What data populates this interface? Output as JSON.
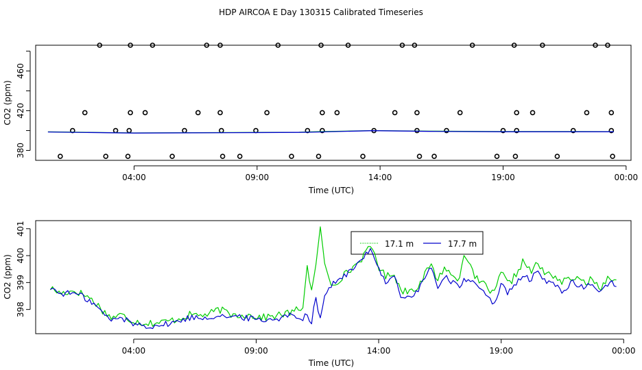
{
  "title": "HDP AIRCOA E  Day 130315  Calibrated Timeseries",
  "colors": {
    "green": "#00cc00",
    "blue": "#0000cc",
    "points": "#000000"
  },
  "chart_data": [
    {
      "type": "scatter",
      "xlabel": "Time (UTC)",
      "ylabel": "CO2 (ppm)",
      "xlim": [
        0.0,
        24.2
      ],
      "ylim": [
        370,
        486
      ],
      "x_ticks": [
        {
          "v": 4,
          "label": "04:00"
        },
        {
          "v": 9,
          "label": "09:00"
        },
        {
          "v": 14,
          "label": "14:00"
        },
        {
          "v": 19,
          "label": "19:00"
        },
        {
          "v": 24,
          "label": "00:00"
        }
      ],
      "y_ticks": [
        {
          "v": 380,
          "label": "380"
        },
        {
          "v": 420,
          "label": "420"
        },
        {
          "v": 460,
          "label": "460"
        }
      ],
      "grid": false,
      "points": [
        [
          1.0,
          374
        ],
        [
          2.6,
          486
        ],
        [
          3.85,
          486
        ],
        [
          4.75,
          486
        ],
        [
          6.95,
          486
        ],
        [
          7.5,
          486
        ],
        [
          9.85,
          486
        ],
        [
          11.6,
          486
        ],
        [
          12.7,
          486
        ],
        [
          14.9,
          486
        ],
        [
          15.4,
          486
        ],
        [
          17.75,
          486
        ],
        [
          19.45,
          486
        ],
        [
          20.6,
          486
        ],
        [
          22.75,
          486
        ],
        [
          23.25,
          486
        ],
        [
          1.5,
          400
        ],
        [
          3.25,
          400
        ],
        [
          3.8,
          400
        ],
        [
          6.05,
          400
        ],
        [
          7.55,
          400
        ],
        [
          8.95,
          400
        ],
        [
          11.05,
          400
        ],
        [
          11.65,
          400
        ],
        [
          13.75,
          400
        ],
        [
          15.5,
          400
        ],
        [
          16.7,
          400
        ],
        [
          19.0,
          400
        ],
        [
          19.55,
          400
        ],
        [
          21.85,
          400
        ],
        [
          23.4,
          400
        ],
        [
          2.0,
          418
        ],
        [
          3.85,
          418
        ],
        [
          4.45,
          418
        ],
        [
          6.6,
          418
        ],
        [
          7.5,
          418
        ],
        [
          9.4,
          418
        ],
        [
          11.65,
          418
        ],
        [
          12.25,
          418
        ],
        [
          14.6,
          418
        ],
        [
          15.5,
          418
        ],
        [
          17.25,
          418
        ],
        [
          19.55,
          418
        ],
        [
          20.2,
          418
        ],
        [
          22.4,
          418
        ],
        [
          23.4,
          418
        ],
        [
          2.85,
          374
        ],
        [
          3.75,
          374
        ],
        [
          5.55,
          374
        ],
        [
          7.6,
          374
        ],
        [
          8.3,
          374
        ],
        [
          10.4,
          374
        ],
        [
          11.5,
          374
        ],
        [
          13.3,
          374
        ],
        [
          15.6,
          374
        ],
        [
          16.2,
          374
        ],
        [
          18.75,
          374
        ],
        [
          19.5,
          374
        ],
        [
          21.2,
          374
        ],
        [
          23.45,
          374
        ]
      ],
      "series": [
        {
          "name": "17.1 m",
          "color": "#00cc00",
          "x": [
            0.5,
            4.0,
            8.0,
            10.7,
            11.5,
            13.7,
            16.0,
            19.0,
            22.0,
            23.5
          ],
          "y": [
            398.7,
            397.6,
            398.0,
            398.3,
            398.9,
            400.0,
            399.4,
            399.0,
            399.0,
            398.9
          ]
        },
        {
          "name": "17.7 m",
          "color": "#0000cc",
          "x": [
            0.5,
            4.0,
            8.0,
            10.7,
            11.5,
            13.7,
            16.0,
            19.0,
            22.0,
            23.5
          ],
          "y": [
            398.6,
            397.5,
            397.9,
            398.2,
            398.6,
            399.9,
            399.2,
            398.8,
            398.8,
            398.8
          ]
        }
      ]
    },
    {
      "type": "line",
      "xlabel": "Time (UTC)",
      "ylabel": "CO2 (ppm)",
      "xlim": [
        0.0,
        24.3
      ],
      "ylim": [
        397.1,
        401.3
      ],
      "x_ticks": [
        {
          "v": 4,
          "label": "04:00"
        },
        {
          "v": 9,
          "label": "09:00"
        },
        {
          "v": 14,
          "label": "14:00"
        },
        {
          "v": 19,
          "label": "19:00"
        },
        {
          "v": 24,
          "label": "00:00"
        }
      ],
      "y_ticks": [
        {
          "v": 398,
          "label": "398"
        },
        {
          "v": 399,
          "label": "399"
        },
        {
          "v": 400,
          "label": "400"
        },
        {
          "v": 401,
          "label": "401"
        }
      ],
      "grid": false,
      "legend": "top-center",
      "series": [
        {
          "name": "17.1 m",
          "color": "#00cc00",
          "x": [
            0.6,
            1.0,
            1.6,
            2.1,
            2.5,
            2.8,
            3.1,
            3.5,
            3.9,
            4.4,
            5.0,
            5.6,
            6.3,
            7.0,
            7.5,
            8.0,
            8.6,
            9.3,
            10.0,
            10.5,
            10.9,
            11.1,
            11.25,
            11.45,
            11.6,
            11.8,
            12.1,
            12.5,
            13.0,
            13.5,
            13.7,
            14.0,
            14.3,
            14.6,
            14.9,
            15.2,
            15.5,
            15.8,
            16.1,
            16.4,
            16.7,
            17.0,
            17.3,
            17.5,
            17.8,
            18.1,
            18.4,
            18.7,
            19.0,
            19.3,
            19.6,
            19.9,
            20.2,
            20.5,
            20.8,
            21.1,
            21.5,
            21.9,
            22.3,
            22.7,
            23.1,
            23.4,
            23.7
          ],
          "y": [
            398.8,
            398.6,
            398.7,
            398.5,
            398.2,
            397.9,
            397.7,
            397.8,
            397.6,
            397.5,
            397.5,
            397.6,
            397.8,
            397.8,
            398.0,
            397.8,
            397.8,
            397.7,
            397.8,
            397.9,
            398.1,
            399.7,
            398.6,
            399.6,
            401.2,
            399.6,
            398.9,
            399.2,
            399.6,
            400.1,
            400.4,
            399.6,
            399.2,
            399.4,
            398.7,
            398.7,
            398.8,
            399.1,
            399.7,
            399.1,
            399.6,
            399.2,
            399.2,
            400.2,
            399.4,
            399.0,
            398.9,
            398.5,
            399.4,
            398.9,
            399.3,
            399.8,
            399.4,
            399.7,
            399.3,
            399.3,
            399.0,
            399.2,
            399.0,
            399.1,
            398.8,
            399.3,
            399.0
          ]
        },
        {
          "name": "17.7 m",
          "color": "#0000cc",
          "x": [
            0.6,
            1.0,
            1.6,
            2.1,
            2.5,
            2.8,
            3.1,
            3.5,
            3.9,
            4.4,
            5.0,
            5.6,
            6.3,
            7.0,
            7.5,
            8.0,
            8.6,
            9.3,
            10.0,
            10.5,
            10.9,
            11.1,
            11.25,
            11.45,
            11.6,
            11.8,
            12.1,
            12.5,
            13.0,
            13.5,
            13.7,
            14.0,
            14.3,
            14.6,
            14.9,
            15.2,
            15.5,
            15.8,
            16.1,
            16.4,
            16.7,
            17.0,
            17.3,
            17.5,
            17.8,
            18.1,
            18.4,
            18.7,
            19.0,
            19.3,
            19.6,
            19.9,
            20.2,
            20.5,
            20.8,
            21.1,
            21.5,
            21.9,
            22.3,
            22.7,
            23.1,
            23.4,
            23.7
          ],
          "y": [
            398.8,
            398.6,
            398.6,
            398.4,
            398.1,
            397.8,
            397.6,
            397.7,
            397.5,
            397.4,
            397.4,
            397.5,
            397.7,
            397.7,
            397.8,
            397.7,
            397.7,
            397.6,
            397.7,
            397.8,
            397.7,
            397.8,
            397.5,
            398.6,
            397.5,
            398.6,
            398.9,
            399.2,
            399.5,
            400.1,
            400.3,
            399.5,
            399.0,
            399.3,
            398.5,
            398.4,
            398.6,
            399.0,
            399.6,
            398.8,
            399.3,
            399.0,
            398.9,
            399.1,
            399.0,
            398.8,
            398.6,
            398.2,
            398.9,
            398.6,
            398.9,
            399.3,
            399.1,
            399.4,
            399.0,
            399.0,
            398.7,
            399.0,
            398.8,
            398.9,
            398.7,
            399.0,
            398.9
          ]
        }
      ]
    }
  ]
}
